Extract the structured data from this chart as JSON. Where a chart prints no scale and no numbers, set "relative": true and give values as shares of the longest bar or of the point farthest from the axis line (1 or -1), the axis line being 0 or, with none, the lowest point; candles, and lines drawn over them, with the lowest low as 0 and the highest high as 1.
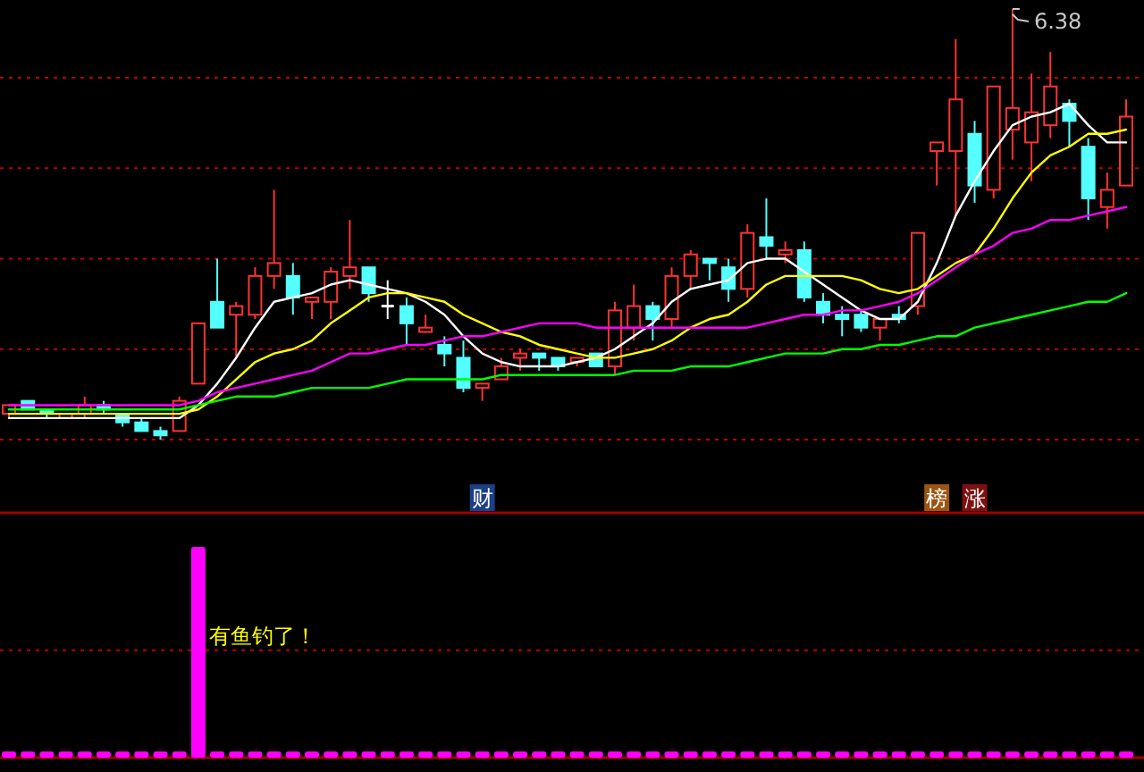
{
  "chart_data": [
    {
      "type": "candlestick",
      "relative": true,
      "categories": [
        null,
        null,
        null,
        null,
        null,
        null,
        null,
        null,
        null,
        null,
        null,
        null,
        null,
        null,
        null,
        null,
        null,
        null,
        null,
        null,
        null,
        null,
        null,
        null,
        null,
        null,
        null,
        null,
        null,
        null,
        null,
        null,
        null,
        null,
        null,
        null,
        null,
        null,
        null,
        null,
        null,
        null,
        null,
        null,
        null,
        null,
        null,
        null,
        null,
        null,
        null,
        null,
        null,
        null,
        null,
        null,
        null,
        null,
        null,
        null
      ],
      "ohlc": [
        [
          0.06,
          0.08,
          0.05,
          0.08
        ],
        [
          0.09,
          0.09,
          0.07,
          0.07
        ],
        [
          0.07,
          0.07,
          0.05,
          0.06
        ],
        [
          0.05,
          0.06,
          0.05,
          0.06
        ],
        [
          0.06,
          0.1,
          0.05,
          0.08
        ],
        [
          0.08,
          0.09,
          0.06,
          0.07
        ],
        [
          0.06,
          0.06,
          0.03,
          0.04
        ],
        [
          0.04,
          0.05,
          0.02,
          0.02
        ],
        [
          0.02,
          0.03,
          0.0,
          0.01
        ],
        [
          0.02,
          0.1,
          0.02,
          0.09
        ],
        [
          0.13,
          0.27,
          0.13,
          0.27
        ],
        [
          0.32,
          0.42,
          0.26,
          0.26
        ],
        [
          0.29,
          0.32,
          0.19,
          0.31
        ],
        [
          0.29,
          0.4,
          0.28,
          0.38
        ],
        [
          0.38,
          0.58,
          0.35,
          0.41
        ],
        [
          0.38,
          0.41,
          0.29,
          0.33
        ],
        [
          0.32,
          0.33,
          0.28,
          0.33
        ],
        [
          0.32,
          0.4,
          0.28,
          0.39
        ],
        [
          0.38,
          0.51,
          0.35,
          0.4
        ],
        [
          0.4,
          0.4,
          0.32,
          0.34
        ],
        [
          0.31,
          0.37,
          0.28,
          0.31
        ],
        [
          0.31,
          0.33,
          0.22,
          0.27
        ],
        [
          0.25,
          0.29,
          0.25,
          0.26
        ],
        [
          0.22,
          0.24,
          0.17,
          0.2
        ],
        [
          0.19,
          0.23,
          0.11,
          0.12
        ],
        [
          0.12,
          0.13,
          0.09,
          0.13
        ],
        [
          0.14,
          0.19,
          0.14,
          0.17
        ],
        [
          0.19,
          0.21,
          0.16,
          0.2
        ],
        [
          0.2,
          0.2,
          0.16,
          0.19
        ],
        [
          0.19,
          0.19,
          0.16,
          0.17
        ],
        [
          0.18,
          0.19,
          0.17,
          0.19
        ],
        [
          0.2,
          0.2,
          0.17,
          0.17
        ],
        [
          0.17,
          0.32,
          0.15,
          0.3
        ],
        [
          0.26,
          0.36,
          0.23,
          0.31
        ],
        [
          0.31,
          0.32,
          0.23,
          0.28
        ],
        [
          0.28,
          0.4,
          0.26,
          0.38
        ],
        [
          0.38,
          0.44,
          0.35,
          0.43
        ],
        [
          0.42,
          0.42,
          0.37,
          0.41
        ],
        [
          0.4,
          0.42,
          0.32,
          0.35
        ],
        [
          0.35,
          0.5,
          0.33,
          0.48
        ],
        [
          0.47,
          0.56,
          0.42,
          0.45
        ],
        [
          0.43,
          0.46,
          0.41,
          0.44
        ],
        [
          0.44,
          0.46,
          0.32,
          0.33
        ],
        [
          0.32,
          0.34,
          0.27,
          0.29
        ],
        [
          0.29,
          0.31,
          0.24,
          0.28
        ],
        [
          0.29,
          0.3,
          0.25,
          0.26
        ],
        [
          0.26,
          0.28,
          0.23,
          0.28
        ],
        [
          0.29,
          0.31,
          0.27,
          0.28
        ],
        [
          0.31,
          0.48,
          0.29,
          0.48
        ],
        [
          0.67,
          0.69,
          0.59,
          0.69
        ],
        [
          0.67,
          0.93,
          0.52,
          0.79
        ],
        [
          0.71,
          0.74,
          0.55,
          0.59
        ],
        [
          0.58,
          0.82,
          0.56,
          0.82
        ],
        [
          0.72,
          1.0,
          0.65,
          0.77
        ],
        [
          0.69,
          0.85,
          0.6,
          0.76
        ],
        [
          0.73,
          0.9,
          0.7,
          0.82
        ],
        [
          0.78,
          0.79,
          0.68,
          0.74
        ],
        [
          0.68,
          0.7,
          0.51,
          0.56
        ],
        [
          0.54,
          0.62,
          0.49,
          0.58
        ],
        [
          0.59,
          0.79,
          0.59,
          0.75
        ]
      ],
      "series": [
        {
          "type": "line",
          "color": "#ffffff",
          "values": [
            0.05,
            0.05,
            0.05,
            0.05,
            0.05,
            0.05,
            0.05,
            0.05,
            0.05,
            0.05,
            0.08,
            0.13,
            0.19,
            0.26,
            0.32,
            0.33,
            0.34,
            0.36,
            0.37,
            0.36,
            0.35,
            0.34,
            0.32,
            0.29,
            0.24,
            0.2,
            0.18,
            0.17,
            0.17,
            0.17,
            0.18,
            0.19,
            0.21,
            0.24,
            0.27,
            0.32,
            0.35,
            0.36,
            0.37,
            0.41,
            0.42,
            0.42,
            0.39,
            0.36,
            0.33,
            0.3,
            0.28,
            0.28,
            0.32,
            0.41,
            0.52,
            0.6,
            0.67,
            0.73,
            0.75,
            0.76,
            0.78,
            0.73,
            0.69,
            0.69
          ]
        },
        {
          "type": "line",
          "color": "#ffff00",
          "values": [
            0.06,
            0.06,
            0.06,
            0.06,
            0.06,
            0.06,
            0.06,
            0.06,
            0.06,
            0.06,
            0.07,
            0.1,
            0.14,
            0.18,
            0.2,
            0.21,
            0.23,
            0.27,
            0.3,
            0.33,
            0.34,
            0.34,
            0.33,
            0.32,
            0.29,
            0.27,
            0.25,
            0.24,
            0.22,
            0.21,
            0.2,
            0.19,
            0.19,
            0.2,
            0.21,
            0.23,
            0.26,
            0.28,
            0.29,
            0.32,
            0.36,
            0.38,
            0.38,
            0.38,
            0.38,
            0.37,
            0.35,
            0.34,
            0.35,
            0.38,
            0.41,
            0.43,
            0.49,
            0.56,
            0.62,
            0.66,
            0.68,
            0.71,
            0.71,
            0.72
          ]
        },
        {
          "type": "line",
          "color": "#ff00ff",
          "values": [
            0.08,
            0.08,
            0.08,
            0.08,
            0.08,
            0.08,
            0.08,
            0.08,
            0.08,
            0.08,
            0.09,
            0.11,
            0.12,
            0.13,
            0.14,
            0.15,
            0.16,
            0.18,
            0.2,
            0.2,
            0.21,
            0.22,
            0.22,
            0.23,
            0.24,
            0.24,
            0.25,
            0.26,
            0.27,
            0.27,
            0.27,
            0.26,
            0.26,
            0.26,
            0.26,
            0.26,
            0.26,
            0.26,
            0.26,
            0.26,
            0.27,
            0.28,
            0.29,
            0.29,
            0.3,
            0.3,
            0.31,
            0.32,
            0.34,
            0.37,
            0.4,
            0.43,
            0.45,
            0.48,
            0.49,
            0.51,
            0.51,
            0.52,
            0.53,
            0.54
          ]
        },
        {
          "type": "line",
          "color": "#00ff00",
          "values": [
            0.07,
            0.07,
            0.07,
            0.07,
            0.07,
            0.07,
            0.07,
            0.07,
            0.07,
            0.07,
            0.08,
            0.09,
            0.1,
            0.1,
            0.1,
            0.11,
            0.12,
            0.12,
            0.12,
            0.12,
            0.13,
            0.14,
            0.14,
            0.14,
            0.14,
            0.14,
            0.15,
            0.15,
            0.15,
            0.15,
            0.15,
            0.15,
            0.15,
            0.16,
            0.16,
            0.16,
            0.17,
            0.17,
            0.17,
            0.18,
            0.19,
            0.2,
            0.2,
            0.2,
            0.21,
            0.21,
            0.22,
            0.22,
            0.23,
            0.24,
            0.24,
            0.26,
            0.27,
            0.28,
            0.29,
            0.3,
            0.31,
            0.32,
            0.32,
            0.34
          ]
        }
      ],
      "ref_lines": [
        {
          "axis": "y",
          "value": 0.84,
          "color": "#c00000",
          "line_style": "dotted"
        },
        {
          "axis": "y",
          "value": 0.63,
          "color": "#c00000",
          "line_style": "dotted"
        },
        {
          "axis": "y",
          "value": 0.42,
          "color": "#c00000",
          "line_style": "dotted"
        },
        {
          "axis": "y",
          "value": 0.21,
          "color": "#c00000",
          "line_style": "dotted"
        },
        {
          "axis": "y",
          "value": 0,
          "color": "#c00000",
          "line_style": "dotted"
        }
      ],
      "annotations": [
        "6.38",
        "财",
        "榜",
        "涨"
      ]
    },
    {
      "type": "bar",
      "relative": true,
      "color": "#ff00ff",
      "categories": [
        null,
        null,
        null,
        null,
        null,
        null,
        null,
        null,
        null,
        null,
        null,
        null,
        null,
        null,
        null,
        null,
        null,
        null,
        null,
        null,
        null,
        null,
        null,
        null,
        null,
        null,
        null,
        null,
        null,
        null,
        null,
        null,
        null,
        null,
        null,
        null,
        null,
        null,
        null,
        null,
        null,
        null,
        null,
        null,
        null,
        null,
        null,
        null,
        null,
        null,
        null,
        null,
        null,
        null,
        null,
        null,
        null,
        null,
        null,
        null
      ],
      "values": [
        0.03,
        0.03,
        0.03,
        0.03,
        0.03,
        0.03,
        0.03,
        0.03,
        0.03,
        0.03,
        1,
        0.03,
        0.03,
        0.03,
        0.03,
        0.03,
        0.03,
        0.03,
        0.03,
        0.03,
        0.03,
        0.03,
        0.03,
        0.03,
        0.03,
        0.03,
        0.03,
        0.03,
        0.03,
        0.03,
        0.03,
        0.03,
        0.03,
        0.03,
        0.03,
        0.03,
        0.03,
        0.03,
        0.03,
        0.03,
        0.03,
        0.03,
        0.03,
        0.03,
        0.03,
        0.03,
        0.03,
        0.03,
        0.03,
        0.03,
        0.03,
        0.03,
        0.03,
        0.03,
        0.03,
        0.03,
        0.03,
        0.03,
        0.03,
        0.03
      ],
      "ref_lines": [
        {
          "axis": "y",
          "value": 0.51,
          "color": "#c00000",
          "line_style": "dotted"
        }
      ],
      "annotations": [
        "有鱼钓了！"
      ]
    }
  ]
}
